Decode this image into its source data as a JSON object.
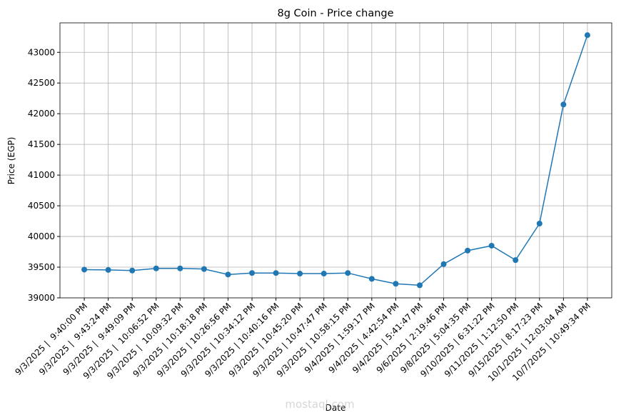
{
  "chart_data": {
    "type": "line",
    "title": "8g Coin - Price change",
    "x_label": "Date",
    "y_label": "Price (EGP)",
    "categories": [
      "9/3/2025 |  9:40:00 PM",
      "9/3/2025 |  9:43:24 PM",
      "9/3/2025 |  9:49:09 PM",
      "9/3/2025 |  10:06:52 PM",
      "9/3/2025 |  10:09:32 PM",
      "9/3/2025 | 10:18:18 PM",
      "9/3/2025 | 10:26:56 PM",
      "9/3/2025 | 10:34:12 PM",
      "9/3/2025 | 10:40:16 PM",
      "9/3/2025 | 10:45:20 PM",
      "9/3/2025 | 10:47:47 PM",
      "9/3/2025 | 10:58:15 PM",
      "9/4/2025 | 1:59:17 PM",
      "9/4/2025 | 4:42:54 PM",
      "9/4/2025 | 5:41:47 PM",
      "9/6/2025 | 2:19:46 PM",
      "9/8/2025 | 5:04:35 PM",
      "9/10/2025 | 6:31:22 PM",
      "9/11/2025 | 1:12:50 PM",
      "9/15/2025 | 8:17:23 PM",
      "10/1/2025 | 12:03:04 AM",
      "10/7/2025 | 10:49:34 PM"
    ],
    "values": [
      39460,
      39455,
      39445,
      39480,
      39480,
      39470,
      39380,
      39405,
      39405,
      39395,
      39395,
      39405,
      39310,
      39230,
      39205,
      39550,
      39770,
      39850,
      39615,
      40210,
      42150,
      43280
    ],
    "color": "#1f77b4",
    "marker": "circle",
    "ylim": [
      39000,
      43480
    ],
    "yticks": [
      39000,
      39500,
      40000,
      40500,
      41000,
      41500,
      42000,
      42500,
      43000
    ],
    "grid": true
  },
  "watermark": "mostaql.com"
}
